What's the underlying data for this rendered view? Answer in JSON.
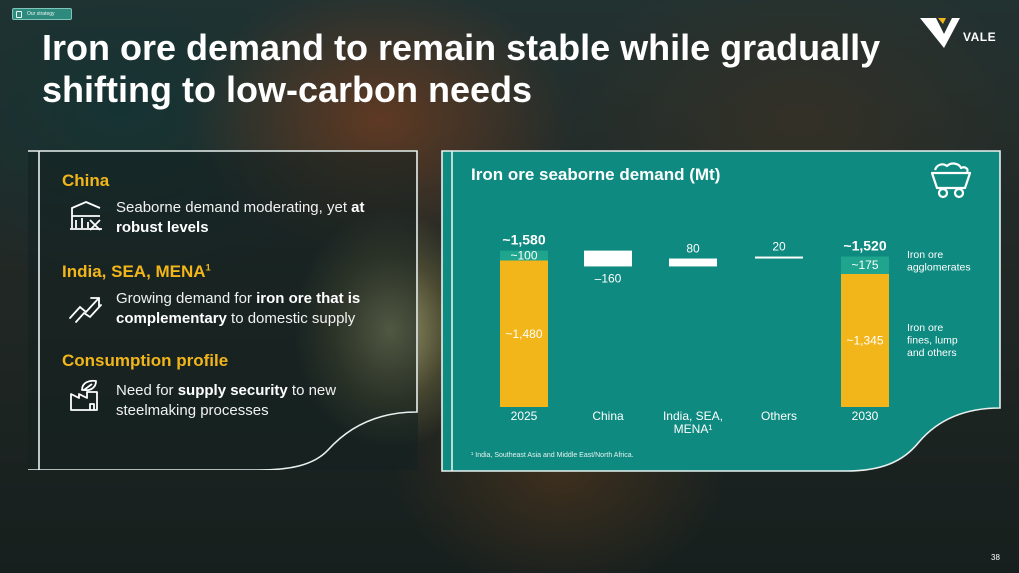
{
  "section_tag": "Our strategy",
  "title": "Iron ore demand to remain stable while gradually shifting to low-carbon needs",
  "logo_text": "VALE",
  "left_panel": {
    "items": [
      {
        "heading": "China",
        "heading_sup": "",
        "icon": "crane-chart-icon",
        "text_parts": [
          "Seaborne demand moderating, yet ",
          "at robust levels",
          ""
        ]
      },
      {
        "heading": "India, SEA, MENA",
        "heading_sup": "1",
        "icon": "trend-up-icon",
        "text_parts": [
          "Growing demand for ",
          "iron ore that is complementary",
          " to domestic supply"
        ]
      },
      {
        "heading": "Consumption profile",
        "heading_sup": "",
        "icon": "factory-leaf-icon",
        "text_parts": [
          "Need for ",
          "supply security",
          " to new steelmaking processes"
        ]
      }
    ]
  },
  "chart_title": "Iron ore seaborne demand (Mt)",
  "chart_data": {
    "type": "bar",
    "subtype": "waterfall",
    "title": "Iron ore seaborne demand (Mt)",
    "categories": [
      "2025",
      "China",
      "India, SEA, MENA¹",
      "Others",
      "2030"
    ],
    "ylim": [
      0,
      1600
    ],
    "colors": {
      "agglomerates": "#1fa48e",
      "fines": "#f2b51a",
      "step": "#ffffff",
      "panel": "#0e8a80"
    },
    "bars": [
      {
        "category": "2025",
        "kind": "stacked",
        "total": 1580,
        "total_label": "~1,580",
        "segments": [
          {
            "series": "Iron ore fines, lump and others",
            "value": 1480,
            "label": "~1,480",
            "color": "#f2b51a"
          },
          {
            "series": "Iron ore agglomerates",
            "value": 100,
            "label": "~100",
            "color": "#1fa48e"
          }
        ]
      },
      {
        "category": "China",
        "kind": "delta",
        "value": -160,
        "label": "–160"
      },
      {
        "category": "India, SEA, MENA¹",
        "kind": "delta",
        "value": 80,
        "label": "80"
      },
      {
        "category": "Others",
        "kind": "delta",
        "value": 20,
        "label": "20"
      },
      {
        "category": "2030",
        "kind": "stacked",
        "total": 1520,
        "total_label": "~1,520",
        "segments": [
          {
            "series": "Iron ore fines, lump and others",
            "value": 1345,
            "label": "~1,345",
            "color": "#f2b51a"
          },
          {
            "series": "Iron ore agglomerates",
            "value": 175,
            "label": "~175",
            "color": "#1fa48e"
          }
        ]
      }
    ],
    "legend": [
      {
        "name": "Iron ore agglomerates",
        "color": "#1fa48e"
      },
      {
        "name": "Iron ore fines, lump and others",
        "color": "#f2b51a"
      }
    ],
    "legend_lines": [
      [
        "Iron ore",
        "agglomerates"
      ],
      [
        "Iron ore",
        "fines, lump",
        "and others"
      ]
    ],
    "legend_position": "right",
    "footnote": "¹ India, Southeast Asia and Middle East/North Africa."
  },
  "page_number": "38"
}
